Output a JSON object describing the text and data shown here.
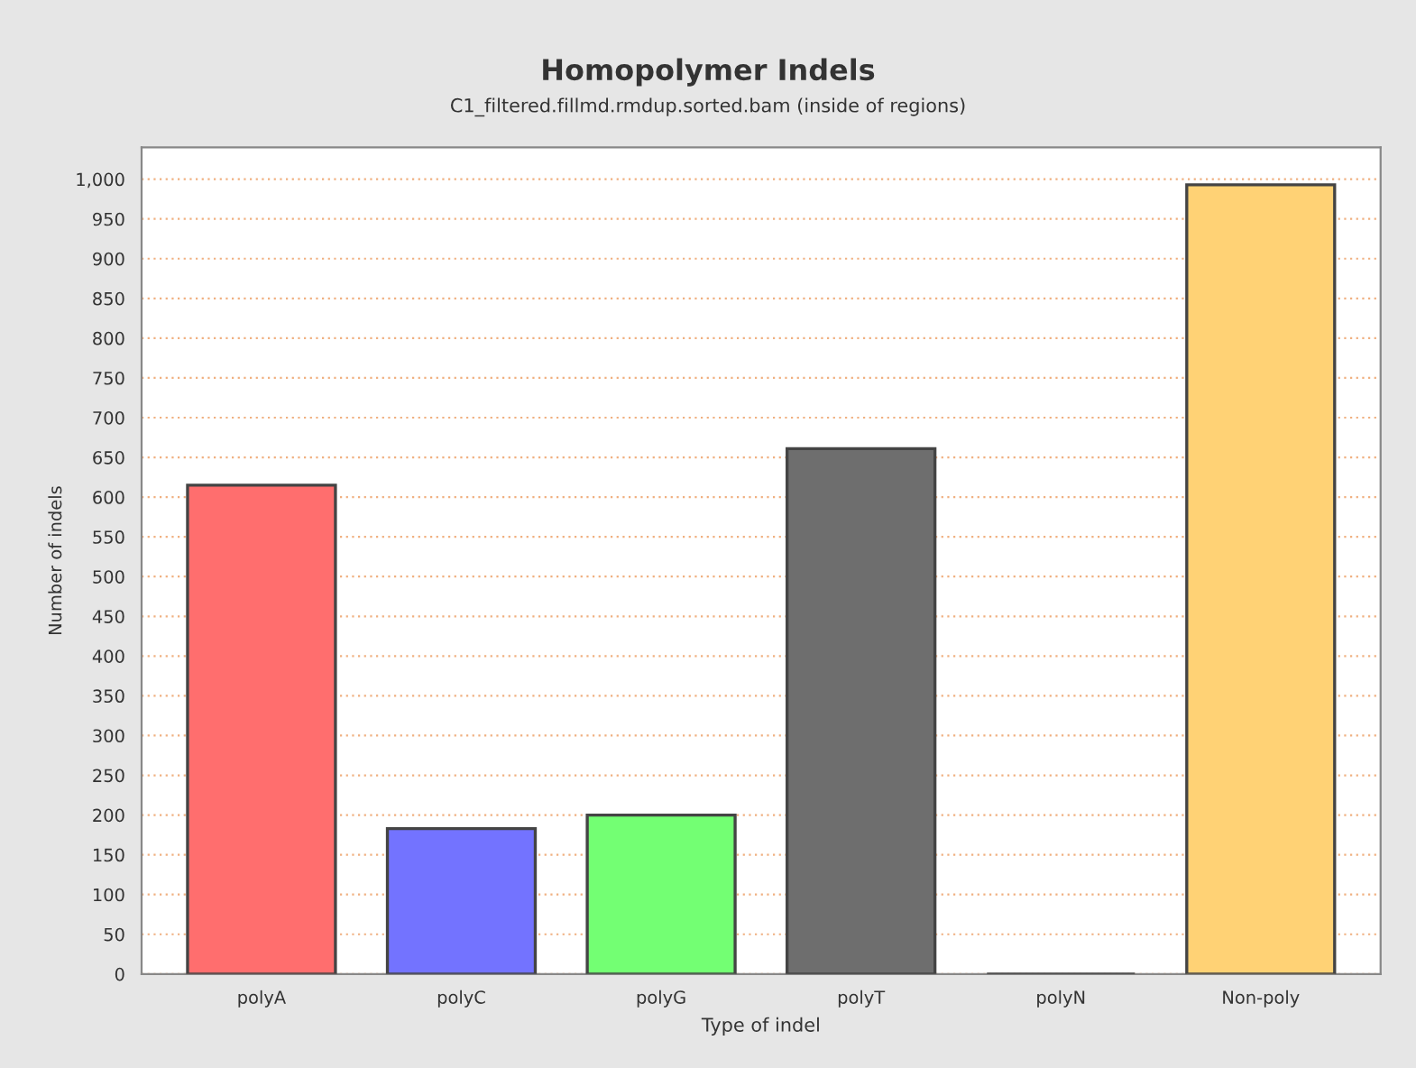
{
  "chart_data": {
    "type": "bar",
    "title": "Homopolymer Indels",
    "subtitle": "C1_filtered.fillmd.rmdup.sorted.bam (inside of regions)",
    "xlabel": "Type of indel",
    "ylabel": "Number of indels",
    "categories": [
      "polyA",
      "polyC",
      "polyG",
      "polyT",
      "polyN",
      "Non-poly"
    ],
    "values": [
      615,
      183,
      200,
      661,
      0,
      993
    ],
    "colors": [
      "#ff6e6e",
      "#7373ff",
      "#73ff73",
      "#6e6e6e",
      "#444444",
      "#ffd275"
    ],
    "ylim": [
      0,
      1040
    ],
    "yticks": [
      0,
      {
        "value": 50,
        "label": "50"
      },
      100,
      150,
      200,
      250,
      300,
      350,
      400,
      450,
      500,
      550,
      600,
      650,
      700,
      750,
      800,
      850,
      900,
      950,
      {
        "value": 1000,
        "label": "1,000"
      }
    ],
    "grid": "y"
  }
}
